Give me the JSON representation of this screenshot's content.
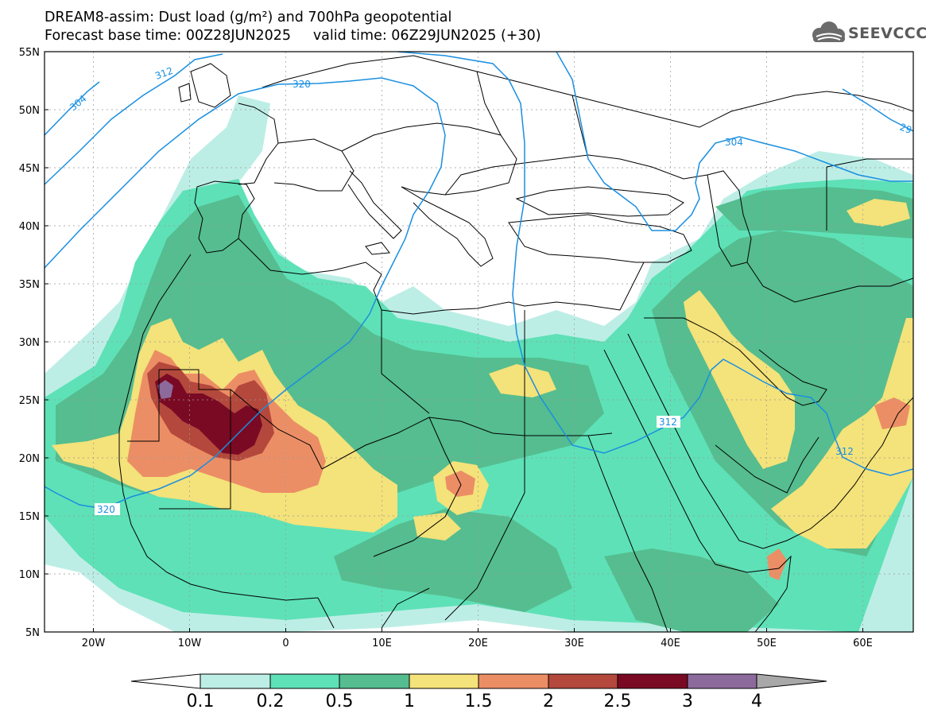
{
  "title": {
    "line1": "DREAM8-assim: Dust load (g/m²) and 700hPa geopotential",
    "line2": "Forecast base time: 00Z28JUN2025     valid time: 06Z29JUN2025 (+30)"
  },
  "logo": {
    "text": "SEEVCCC",
    "icon": "cloud-icon"
  },
  "map": {
    "lat_labels": [
      "55N",
      "50N",
      "45N",
      "40N",
      "35N",
      "30N",
      "25N",
      "20N",
      "15N",
      "10N",
      "5N"
    ],
    "lon_labels": [
      "20W",
      "10W",
      "0",
      "10E",
      "20E",
      "30E",
      "40E",
      "50E",
      "60E"
    ],
    "lat_range": [
      5,
      55
    ],
    "lon_range": [
      -25,
      65
    ]
  },
  "contours": {
    "labels": [
      "304",
      "312",
      "320",
      "304",
      "29",
      "312",
      "312",
      "320"
    ]
  },
  "colorbar": {
    "ticks": [
      "0.1",
      "0.2",
      "0.5",
      "1",
      "1.5",
      "2",
      "2.5",
      "3",
      "4"
    ],
    "colors": [
      "#ffffff",
      "#bdeee6",
      "#5ee1b7",
      "#55bd8f",
      "#f4e27a",
      "#ec8e65",
      "#b4483c",
      "#7a0a24",
      "#8c6a9c",
      "#a8a8a8"
    ]
  },
  "dust_colors": {
    "c01": "#bdeee6",
    "c02": "#5ee1b7",
    "c05": "#55bd8f",
    "c1": "#f4e27a",
    "c15": "#ec8e65",
    "c2": "#b4483c",
    "c25": "#7a0a24",
    "c3": "#8c6a9c"
  }
}
